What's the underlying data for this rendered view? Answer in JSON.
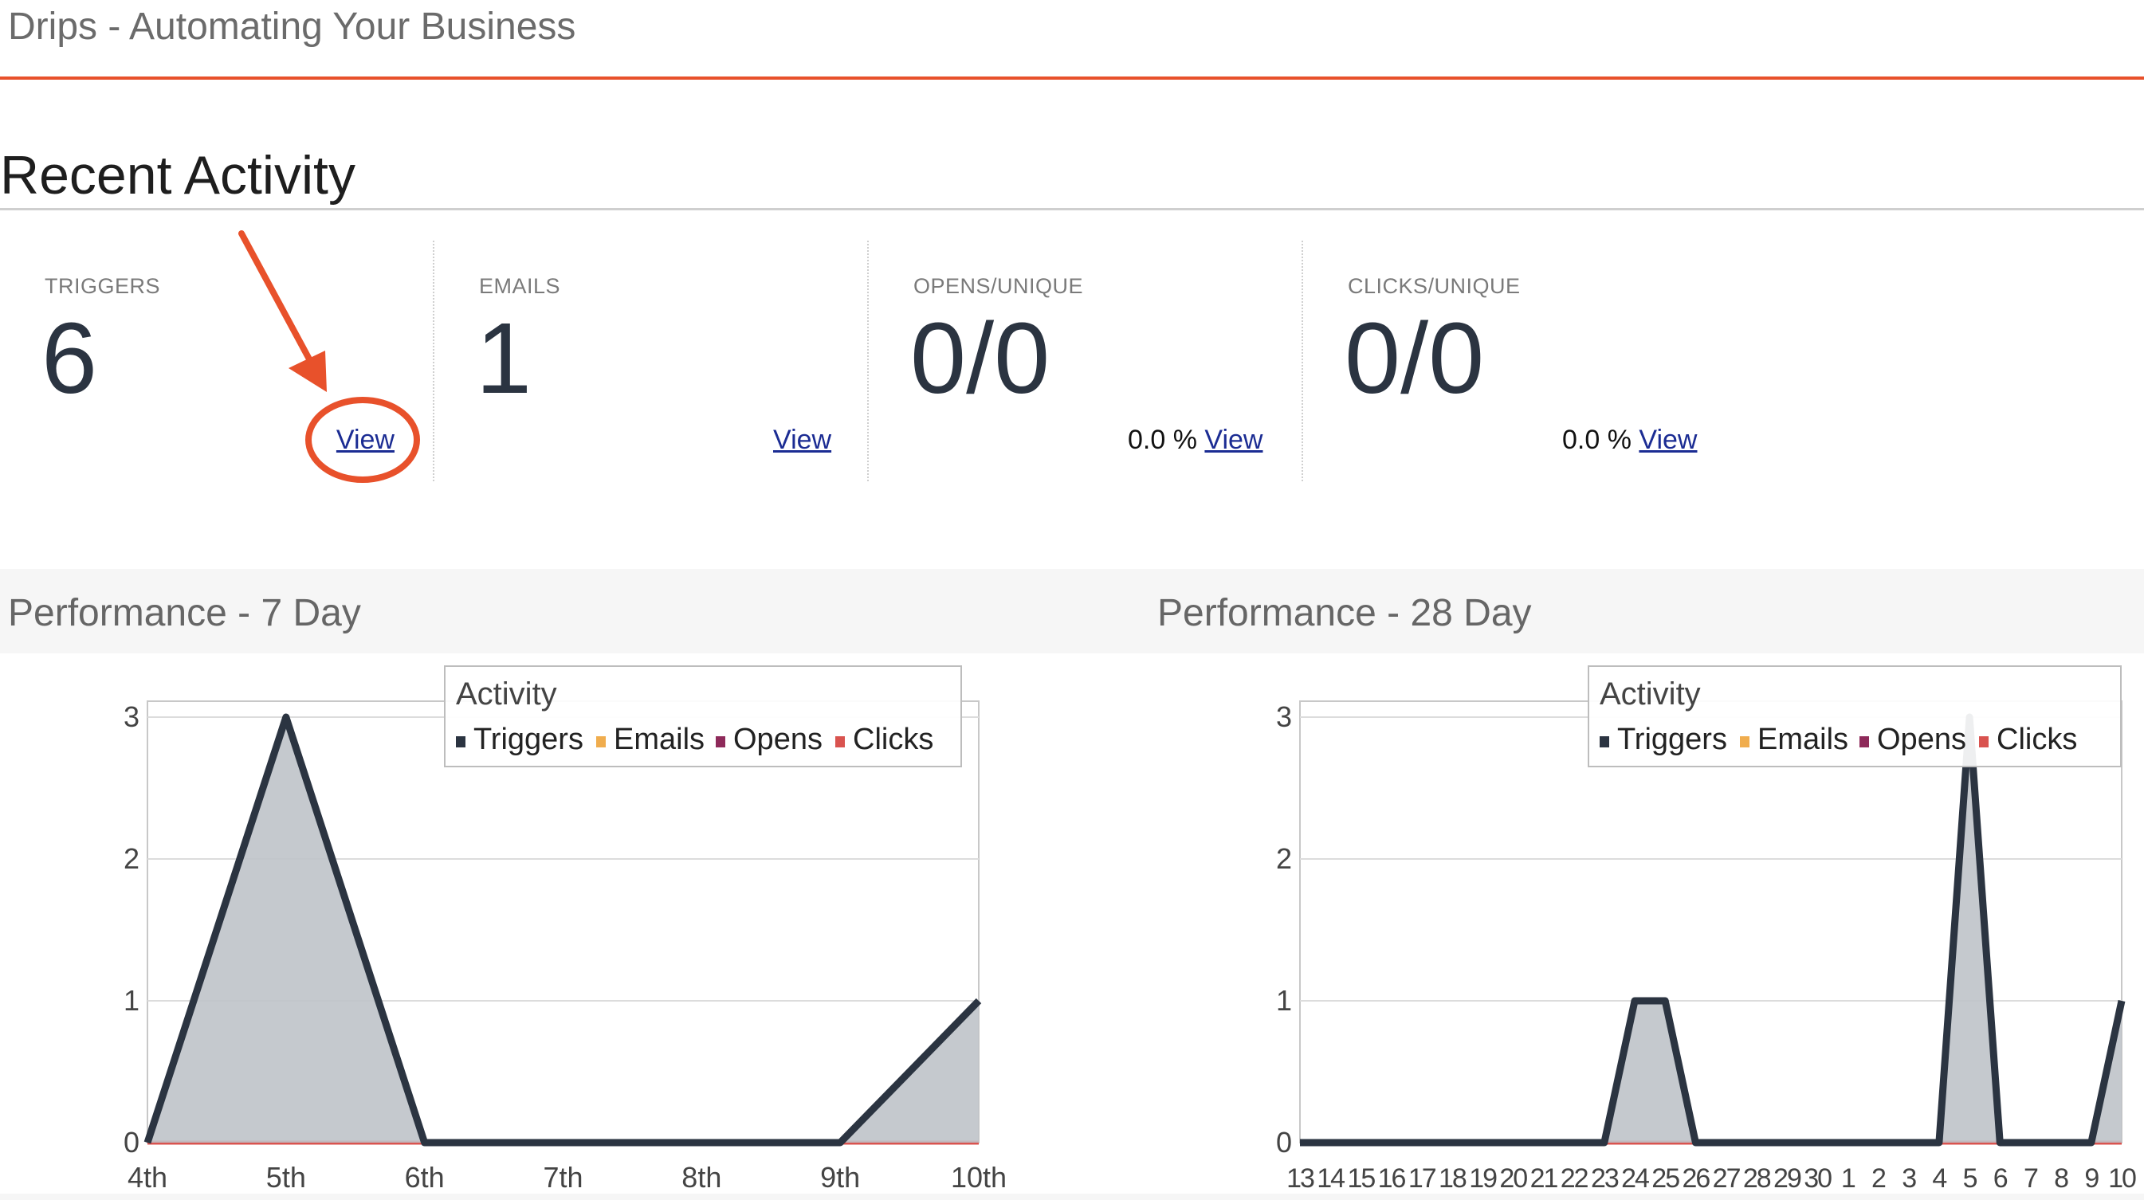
{
  "header": {
    "title": "Drips - Automating Your Business"
  },
  "recent_activity": {
    "title": "Recent Activity",
    "stats": [
      {
        "label": "TRIGGERS",
        "value": "6",
        "rate": "",
        "link": "View"
      },
      {
        "label": "EMAILS",
        "value": "1",
        "rate": "",
        "link": "View"
      },
      {
        "label": "OPENS/UNIQUE",
        "value": "0/0",
        "rate": "0.0 %",
        "link": "View"
      },
      {
        "label": "CLICKS/UNIQUE",
        "value": "0/0",
        "rate": "0.0 %",
        "link": "View"
      }
    ]
  },
  "annotation": {
    "color": "#e8512b",
    "target": "triggers-view-link"
  },
  "chart_data": [
    {
      "type": "area",
      "title": "Performance - 7 Day",
      "legend_title": "Activity",
      "legend_position": "top-right",
      "categories": [
        "4th",
        "5th",
        "6th",
        "7th",
        "8th",
        "9th",
        "10th"
      ],
      "ylim": [
        0,
        3
      ],
      "yticks": [
        "0",
        "1",
        "2",
        "3"
      ],
      "grid": true,
      "series": [
        {
          "name": "Triggers",
          "color": "#2b3441",
          "values": [
            0,
            3,
            0,
            0,
            0,
            0,
            1
          ]
        },
        {
          "name": "Emails",
          "color": "#f0ad4e",
          "values": [
            0,
            0,
            0,
            0,
            0,
            0,
            0
          ]
        },
        {
          "name": "Opens",
          "color": "#8e2a5a",
          "values": [
            0,
            0,
            0,
            0,
            0,
            0,
            0
          ]
        },
        {
          "name": "Clicks",
          "color": "#d9534f",
          "values": [
            0,
            0,
            0,
            0,
            0,
            0,
            0
          ]
        }
      ]
    },
    {
      "type": "area",
      "title": "Performance - 28 Day",
      "legend_title": "Activity",
      "legend_position": "top-right",
      "categories": [
        "13",
        "14",
        "15",
        "16",
        "17",
        "18",
        "19",
        "20",
        "21",
        "22",
        "23",
        "24",
        "25",
        "26",
        "27",
        "28",
        "29",
        "30",
        "1",
        "2",
        "3",
        "4",
        "5",
        "6",
        "7",
        "8",
        "9",
        "10"
      ],
      "ylim": [
        0,
        3
      ],
      "yticks": [
        "0",
        "1",
        "2",
        "3"
      ],
      "grid": true,
      "series": [
        {
          "name": "Triggers",
          "color": "#2b3441",
          "values": [
            0,
            0,
            0,
            0,
            0,
            0,
            0,
            0,
            0,
            0,
            0,
            1,
            1,
            0,
            0,
            0,
            0,
            0,
            0,
            0,
            0,
            0,
            3,
            0,
            0,
            0,
            0,
            1
          ]
        },
        {
          "name": "Emails",
          "color": "#f0ad4e",
          "values": [
            0,
            0,
            0,
            0,
            0,
            0,
            0,
            0,
            0,
            0,
            0,
            0,
            0,
            0,
            0,
            0,
            0,
            0,
            0,
            0,
            0,
            0,
            0,
            0,
            0,
            0,
            0,
            0
          ]
        },
        {
          "name": "Opens",
          "color": "#8e2a5a",
          "values": [
            0,
            0,
            0,
            0,
            0,
            0,
            0,
            0,
            0,
            0,
            0,
            0,
            0,
            0,
            0,
            0,
            0,
            0,
            0,
            0,
            0,
            0,
            0,
            0,
            0,
            0,
            0,
            0
          ]
        },
        {
          "name": "Clicks",
          "color": "#d9534f",
          "values": [
            0,
            0,
            0,
            0,
            0,
            0,
            0,
            0,
            0,
            0,
            0,
            0,
            0,
            0,
            0,
            0,
            0,
            0,
            0,
            0,
            0,
            0,
            0,
            0,
            0,
            0,
            0,
            0
          ]
        }
      ]
    }
  ]
}
